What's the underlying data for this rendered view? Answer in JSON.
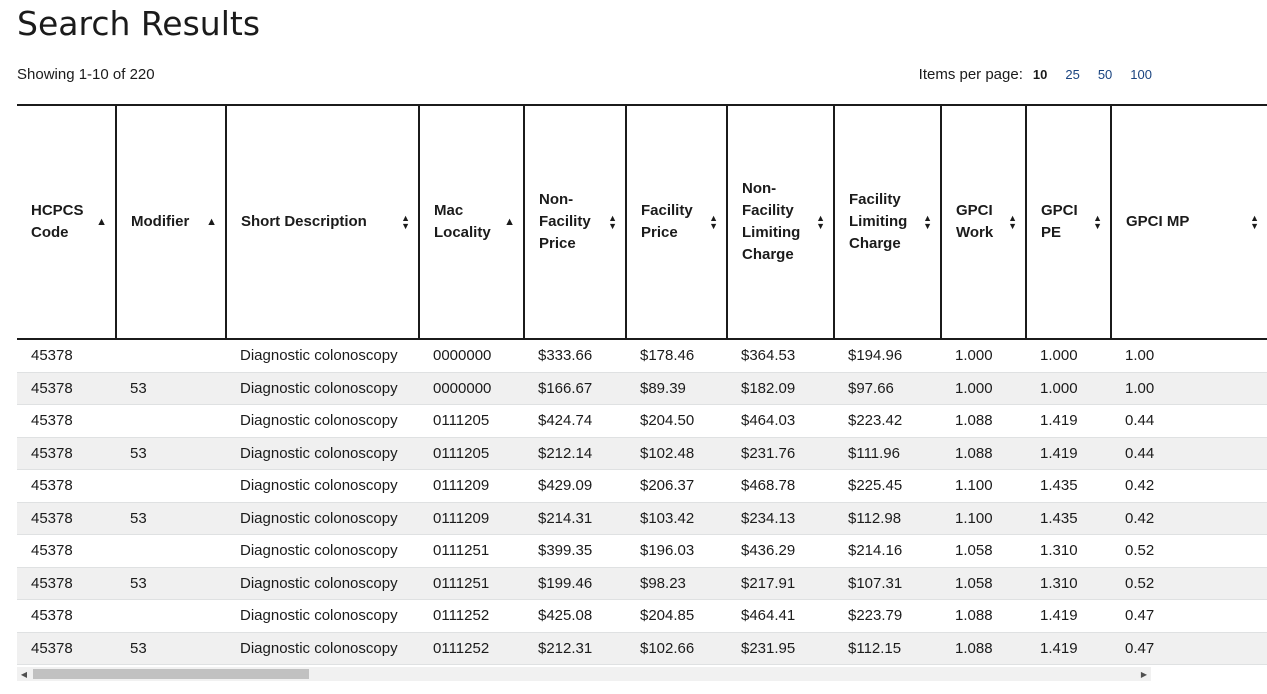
{
  "page": {
    "title": "Search Results",
    "showing": "Showing 1-10 of 220"
  },
  "items_per_page": {
    "label": "Items per page:",
    "options": [
      "10",
      "25",
      "50",
      "100"
    ],
    "selected": "10"
  },
  "table": {
    "columns": [
      {
        "key": "hcpcs",
        "label": "HCPCS Code",
        "sort": "asc"
      },
      {
        "key": "modifier",
        "label": "Modifier",
        "sort": "asc"
      },
      {
        "key": "desc",
        "label": "Short Description",
        "sort": "both"
      },
      {
        "key": "mac",
        "label": "Mac Locality",
        "sort": "asc"
      },
      {
        "key": "nf_price",
        "label": "Non-Facility Price",
        "sort": "both"
      },
      {
        "key": "f_price",
        "label": "Facility Price",
        "sort": "both"
      },
      {
        "key": "nf_limit",
        "label": "Non-Facility Limiting Charge",
        "sort": "both"
      },
      {
        "key": "f_limit",
        "label": "Facility Limiting Charge",
        "sort": "both"
      },
      {
        "key": "gpci_work",
        "label": "GPCI Work",
        "sort": "both"
      },
      {
        "key": "gpci_pe",
        "label": "GPCI PE",
        "sort": "both"
      },
      {
        "key": "gpci_mp",
        "label": "GPCI MP",
        "sort": "both"
      }
    ],
    "rows": [
      [
        "45378",
        "",
        "Diagnostic colonoscopy",
        "0000000",
        "$333.66",
        "$178.46",
        "$364.53",
        "$194.96",
        "1.000",
        "1.000",
        "1.00"
      ],
      [
        "45378",
        "53",
        "Diagnostic colonoscopy",
        "0000000",
        "$166.67",
        "$89.39",
        "$182.09",
        "$97.66",
        "1.000",
        "1.000",
        "1.00"
      ],
      [
        "45378",
        "",
        "Diagnostic colonoscopy",
        "0111205",
        "$424.74",
        "$204.50",
        "$464.03",
        "$223.42",
        "1.088",
        "1.419",
        "0.44"
      ],
      [
        "45378",
        "53",
        "Diagnostic colonoscopy",
        "0111205",
        "$212.14",
        "$102.48",
        "$231.76",
        "$111.96",
        "1.088",
        "1.419",
        "0.44"
      ],
      [
        "45378",
        "",
        "Diagnostic colonoscopy",
        "0111209",
        "$429.09",
        "$206.37",
        "$468.78",
        "$225.45",
        "1.100",
        "1.435",
        "0.42"
      ],
      [
        "45378",
        "53",
        "Diagnostic colonoscopy",
        "0111209",
        "$214.31",
        "$103.42",
        "$234.13",
        "$112.98",
        "1.100",
        "1.435",
        "0.42"
      ],
      [
        "45378",
        "",
        "Diagnostic colonoscopy",
        "0111251",
        "$399.35",
        "$196.03",
        "$436.29",
        "$214.16",
        "1.058",
        "1.310",
        "0.52"
      ],
      [
        "45378",
        "53",
        "Diagnostic colonoscopy",
        "0111251",
        "$199.46",
        "$98.23",
        "$217.91",
        "$107.31",
        "1.058",
        "1.310",
        "0.52"
      ],
      [
        "45378",
        "",
        "Diagnostic colonoscopy",
        "0111252",
        "$425.08",
        "$204.85",
        "$464.41",
        "$223.79",
        "1.088",
        "1.419",
        "0.47"
      ],
      [
        "45378",
        "53",
        "Diagnostic colonoscopy",
        "0111252",
        "$212.31",
        "$102.66",
        "$231.95",
        "$112.15",
        "1.088",
        "1.419",
        "0.47"
      ]
    ]
  }
}
